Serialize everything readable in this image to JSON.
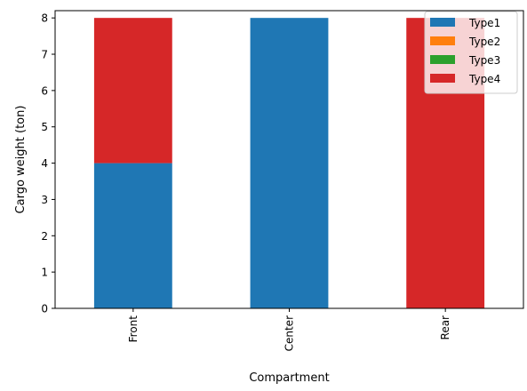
{
  "chart_data": {
    "type": "bar",
    "stacked": true,
    "title": "",
    "xlabel": "Compartment",
    "ylabel": "Cargo weight (ton)",
    "categories": [
      "Front",
      "Center",
      "Rear"
    ],
    "ylim": [
      0,
      8.2
    ],
    "yticks": [
      0,
      1,
      2,
      3,
      4,
      5,
      6,
      7,
      8
    ],
    "grid": false,
    "legend_position": "top-right",
    "series": [
      {
        "name": "Type1",
        "color": "#1f77b4",
        "values": [
          4,
          8,
          0
        ]
      },
      {
        "name": "Type2",
        "color": "#ff7f0e",
        "values": [
          0,
          0,
          0
        ]
      },
      {
        "name": "Type3",
        "color": "#2ca02c",
        "values": [
          0,
          0,
          0
        ]
      },
      {
        "name": "Type4",
        "color": "#d62728",
        "values": [
          4,
          0,
          8
        ]
      }
    ]
  }
}
